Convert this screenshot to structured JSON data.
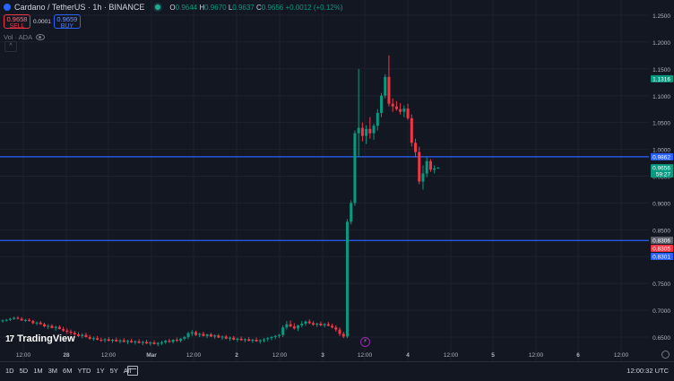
{
  "header": {
    "symbol_title": "Cardano / TetherUS · 1h · BINANCE",
    "ohlc": {
      "o_label": "O",
      "o": "0.9644",
      "h_label": "H",
      "h": "0.9670",
      "l_label": "L",
      "l": "0.9637",
      "c_label": "C",
      "c": "0.9656",
      "change": "+0.0012 (+0.12%)"
    }
  },
  "trade": {
    "sell_price": "0.9658",
    "sell_label": "SELL",
    "spread": "0.0001",
    "buy_price": "0.9659",
    "buy_label": "BUY"
  },
  "volume_label": "Vol · ADA",
  "logo_text": "TradingView",
  "colors": {
    "up": "#089981",
    "down": "#f23645",
    "hline": "#2962ff",
    "bg": "#131722",
    "grid": "#1e222d"
  },
  "price_axis": {
    "ticks": [
      "1.2500",
      "1.2000",
      "1.1500",
      "1.1000",
      "1.0500",
      "1.0000",
      "0.9500",
      "0.9000",
      "0.8500",
      "0.8000",
      "0.7500",
      "0.7000",
      "0.6500"
    ],
    "markers": [
      {
        "label": "1.1316",
        "value": 1.1316,
        "color": "#089981",
        "sub": ""
      },
      {
        "label": "0.9862",
        "value": 0.9862,
        "color": "#2962ff",
        "sub": ""
      },
      {
        "label": "0.9656",
        "value": 0.9656,
        "color": "#089981",
        "sub": "59:27"
      },
      {
        "label": "0.8306",
        "value": 0.8306,
        "color": "#5d606b",
        "sub": ""
      },
      {
        "label": "0.8305",
        "value": 0.8305,
        "color": "#f23645",
        "sub": ""
      },
      {
        "label": "0.8301",
        "value": 0.8301,
        "color": "#2962ff",
        "sub": ""
      }
    ]
  },
  "time_axis": [
    "12:00",
    "28",
    "12:00",
    "Mar",
    "12:00",
    "2",
    "12:00",
    "3",
    "12:00",
    "4",
    "12:00",
    "5",
    "12:00",
    "6",
    "12:00"
  ],
  "horizontal_lines": [
    0.9862,
    0.8301
  ],
  "chart_data": {
    "type": "candlestick",
    "interval": "1h",
    "ylim": [
      0.625,
      1.27
    ],
    "candles": [
      [
        0.68,
        0.683,
        0.677,
        0.681
      ],
      [
        0.681,
        0.684,
        0.679,
        0.682
      ],
      [
        0.682,
        0.686,
        0.68,
        0.684
      ],
      [
        0.684,
        0.688,
        0.682,
        0.686
      ],
      [
        0.686,
        0.689,
        0.683,
        0.684
      ],
      [
        0.684,
        0.687,
        0.68,
        0.681
      ],
      [
        0.681,
        0.684,
        0.678,
        0.682
      ],
      [
        0.682,
        0.685,
        0.679,
        0.68
      ],
      [
        0.68,
        0.682,
        0.674,
        0.676
      ],
      [
        0.676,
        0.679,
        0.672,
        0.677
      ],
      [
        0.677,
        0.68,
        0.673,
        0.674
      ],
      [
        0.674,
        0.677,
        0.668,
        0.67
      ],
      [
        0.67,
        0.674,
        0.665,
        0.671
      ],
      [
        0.671,
        0.674,
        0.666,
        0.667
      ],
      [
        0.667,
        0.671,
        0.662,
        0.669
      ],
      [
        0.669,
        0.672,
        0.664,
        0.665
      ],
      [
        0.665,
        0.669,
        0.66,
        0.662
      ],
      [
        0.662,
        0.666,
        0.656,
        0.66
      ],
      [
        0.66,
        0.664,
        0.654,
        0.658
      ],
      [
        0.658,
        0.662,
        0.652,
        0.655
      ],
      [
        0.655,
        0.659,
        0.65,
        0.652
      ],
      [
        0.652,
        0.657,
        0.648,
        0.654
      ],
      [
        0.654,
        0.658,
        0.649,
        0.65
      ],
      [
        0.65,
        0.654,
        0.645,
        0.647
      ],
      [
        0.647,
        0.651,
        0.643,
        0.648
      ],
      [
        0.648,
        0.652,
        0.644,
        0.645
      ],
      [
        0.645,
        0.649,
        0.641,
        0.644
      ],
      [
        0.644,
        0.648,
        0.64,
        0.646
      ],
      [
        0.646,
        0.65,
        0.642,
        0.643
      ],
      [
        0.643,
        0.647,
        0.639,
        0.645
      ],
      [
        0.645,
        0.649,
        0.641,
        0.642
      ],
      [
        0.642,
        0.646,
        0.638,
        0.644
      ],
      [
        0.644,
        0.648,
        0.64,
        0.641
      ],
      [
        0.641,
        0.645,
        0.637,
        0.643
      ],
      [
        0.643,
        0.647,
        0.639,
        0.64
      ],
      [
        0.64,
        0.644,
        0.636,
        0.642
      ],
      [
        0.642,
        0.646,
        0.638,
        0.639
      ],
      [
        0.639,
        0.643,
        0.635,
        0.641
      ],
      [
        0.641,
        0.645,
        0.637,
        0.638
      ],
      [
        0.638,
        0.642,
        0.634,
        0.64
      ],
      [
        0.64,
        0.644,
        0.636,
        0.637
      ],
      [
        0.637,
        0.641,
        0.633,
        0.639
      ],
      [
        0.639,
        0.643,
        0.635,
        0.64
      ],
      [
        0.64,
        0.645,
        0.637,
        0.643
      ],
      [
        0.643,
        0.647,
        0.639,
        0.641
      ],
      [
        0.641,
        0.646,
        0.638,
        0.645
      ],
      [
        0.645,
        0.649,
        0.641,
        0.643
      ],
      [
        0.643,
        0.648,
        0.64,
        0.647
      ],
      [
        0.647,
        0.652,
        0.644,
        0.65
      ],
      [
        0.65,
        0.66,
        0.646,
        0.657
      ],
      [
        0.657,
        0.663,
        0.652,
        0.659
      ],
      [
        0.659,
        0.662,
        0.652,
        0.654
      ],
      [
        0.654,
        0.658,
        0.65,
        0.656
      ],
      [
        0.656,
        0.66,
        0.651,
        0.652
      ],
      [
        0.652,
        0.656,
        0.648,
        0.655
      ],
      [
        0.655,
        0.658,
        0.65,
        0.651
      ],
      [
        0.651,
        0.655,
        0.647,
        0.653
      ],
      [
        0.653,
        0.656,
        0.648,
        0.649
      ],
      [
        0.649,
        0.653,
        0.645,
        0.651
      ],
      [
        0.651,
        0.654,
        0.646,
        0.647
      ],
      [
        0.647,
        0.651,
        0.643,
        0.649
      ],
      [
        0.649,
        0.652,
        0.644,
        0.645
      ],
      [
        0.645,
        0.649,
        0.641,
        0.647
      ],
      [
        0.647,
        0.651,
        0.643,
        0.644
      ],
      [
        0.644,
        0.648,
        0.64,
        0.646
      ],
      [
        0.646,
        0.65,
        0.642,
        0.643
      ],
      [
        0.643,
        0.647,
        0.639,
        0.645
      ],
      [
        0.645,
        0.649,
        0.641,
        0.642
      ],
      [
        0.642,
        0.646,
        0.638,
        0.644
      ],
      [
        0.644,
        0.648,
        0.64,
        0.646
      ],
      [
        0.646,
        0.65,
        0.642,
        0.648
      ],
      [
        0.648,
        0.652,
        0.644,
        0.65
      ],
      [
        0.65,
        0.654,
        0.646,
        0.652
      ],
      [
        0.652,
        0.656,
        0.648,
        0.654
      ],
      [
        0.654,
        0.672,
        0.65,
        0.668
      ],
      [
        0.668,
        0.68,
        0.664,
        0.674
      ],
      [
        0.674,
        0.681,
        0.668,
        0.67
      ],
      [
        0.67,
        0.676,
        0.664,
        0.666
      ],
      [
        0.666,
        0.673,
        0.661,
        0.672
      ],
      [
        0.672,
        0.68,
        0.668,
        0.675
      ],
      [
        0.675,
        0.681,
        0.671,
        0.679
      ],
      [
        0.679,
        0.683,
        0.674,
        0.676
      ],
      [
        0.676,
        0.68,
        0.671,
        0.673
      ],
      [
        0.673,
        0.677,
        0.669,
        0.675
      ],
      [
        0.675,
        0.679,
        0.67,
        0.672
      ],
      [
        0.672,
        0.676,
        0.668,
        0.674
      ],
      [
        0.674,
        0.678,
        0.67,
        0.671
      ],
      [
        0.671,
        0.675,
        0.666,
        0.668
      ],
      [
        0.668,
        0.672,
        0.66,
        0.664
      ],
      [
        0.664,
        0.668,
        0.652,
        0.656
      ],
      [
        0.656,
        0.66,
        0.648,
        0.651
      ],
      [
        0.651,
        0.87,
        0.648,
        0.865
      ],
      [
        0.865,
        0.905,
        0.86,
        0.9
      ],
      [
        0.9,
        1.035,
        0.895,
        1.03
      ],
      [
        1.03,
        1.15,
        0.985,
        1.04
      ],
      [
        1.04,
        1.05,
        1.015,
        1.025
      ],
      [
        1.025,
        1.045,
        1.01,
        1.038
      ],
      [
        1.038,
        1.06,
        1.02,
        1.03
      ],
      [
        1.03,
        1.048,
        1.018,
        1.044
      ],
      [
        1.044,
        1.075,
        1.035,
        1.068
      ],
      [
        1.068,
        1.105,
        1.06,
        1.1
      ],
      [
        1.1,
        1.14,
        1.095,
        1.135
      ],
      [
        1.135,
        1.175,
        1.08,
        1.085
      ],
      [
        1.085,
        1.095,
        1.07,
        1.08
      ],
      [
        1.08,
        1.09,
        1.072,
        1.075
      ],
      [
        1.075,
        1.086,
        1.065,
        1.07
      ],
      [
        1.07,
        1.082,
        1.06,
        1.076
      ],
      [
        1.076,
        1.085,
        1.055,
        1.058
      ],
      [
        1.058,
        1.065,
        1.005,
        1.012
      ],
      [
        1.012,
        1.02,
        0.985,
        0.995
      ],
      [
        0.995,
        1.005,
        0.935,
        0.94
      ],
      [
        0.94,
        0.97,
        0.925,
        0.955
      ],
      [
        0.955,
        0.985,
        0.948,
        0.978
      ],
      [
        0.978,
        0.982,
        0.958,
        0.962
      ],
      [
        0.962,
        0.97,
        0.955,
        0.9644
      ],
      [
        0.9644,
        0.967,
        0.9637,
        0.9656
      ]
    ]
  }
}
